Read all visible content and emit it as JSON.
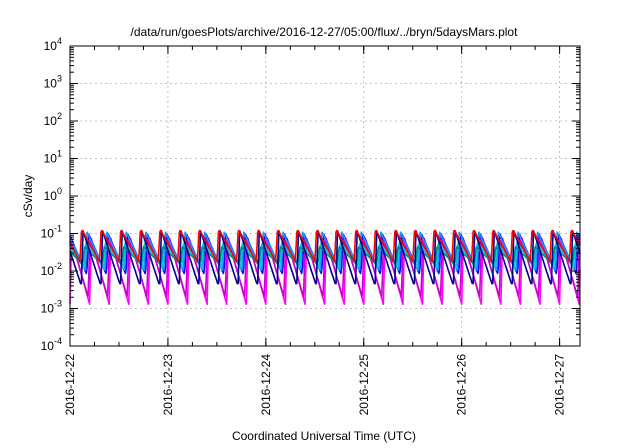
{
  "chart_data": {
    "type": "line",
    "title": "/data/run/goesPlots/archive/2016-12-27/05:00/flux/../bryn/5daysMars.plot",
    "xlabel": "Coordinated Universal Time (UTC)",
    "ylabel": "cSv/day",
    "x_ticks": [
      "2016-12-22",
      "2016-12-23",
      "2016-12-24",
      "2016-12-25",
      "2016-12-26",
      "2016-12-27"
    ],
    "y_ticks": [
      {
        "base": "10",
        "exp": "-4"
      },
      {
        "base": "10",
        "exp": "-3"
      },
      {
        "base": "10",
        "exp": "-2"
      },
      {
        "base": "10",
        "exp": "-1"
      },
      {
        "base": "10",
        "exp": "0"
      },
      {
        "base": "10",
        "exp": "1"
      },
      {
        "base": "10",
        "exp": "2"
      },
      {
        "base": "10",
        "exp": "3"
      },
      {
        "base": "10",
        "exp": "4"
      }
    ],
    "xlim": [
      "2016-12-22 00:00",
      "2016-12-27 05:00"
    ],
    "ylim": [
      0.0001,
      10000
    ],
    "y_scale": "log",
    "grid": true,
    "pattern": "sawtooth",
    "sawtooth_period_hours": 4.8,
    "series": [
      {
        "color": "#ff00ff",
        "peak": 0.075,
        "trough": 0.0013
      },
      {
        "color": "#cc00cc",
        "peak": 0.085,
        "trough": 0.002
      },
      {
        "color": "#0000ff",
        "peak": 0.1,
        "trough": 0.008
      },
      {
        "color": "#1e90ff",
        "peak": 0.11,
        "trough": 0.01
      },
      {
        "color": "#00cccc",
        "peak": 0.06,
        "trough": 0.012
      },
      {
        "color": "#008b8b",
        "peak": 0.045,
        "trough": 0.015
      },
      {
        "color": "#00008b",
        "peak": 0.12,
        "trough": 0.004
      },
      {
        "color": "#ff0000",
        "peak": 0.13,
        "trough": 0.018
      }
    ]
  }
}
